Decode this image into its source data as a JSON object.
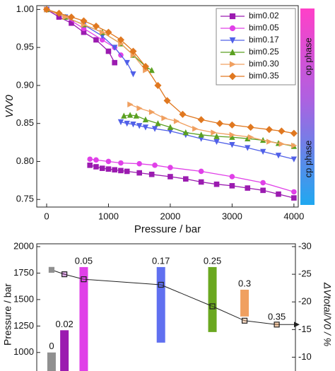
{
  "chart_data": [
    {
      "type": "line",
      "ylabel": "V/V0",
      "xlabel": "Pressure / bar",
      "xlim": [
        -160,
        4070
      ],
      "ylim": [
        0.74,
        1.005
      ],
      "xticks": [
        0,
        1000,
        2000,
        3000,
        4000
      ],
      "yticks": [
        0.75,
        {
          "value": 0.8,
          "label": "0.80"
        },
        0.85,
        {
          "value": 0.9,
          "label": "0.90"
        },
        0.95,
        {
          "value": 1,
          "label": "1.00"
        }
      ],
      "phase_labels": [
        "op phase",
        "cp phase"
      ],
      "series": [
        {
          "name": "bim0.02",
          "color": "#9b1bb0",
          "marker": "square",
          "filled": true,
          "x": [
            0,
            200,
            400,
            600,
            800,
            1000,
            1100,
            null,
            700,
            800,
            900,
            1000,
            1100,
            1200,
            1300,
            1500,
            1700,
            2000,
            2250,
            2500,
            2750,
            3000,
            3250,
            3500,
            3750,
            4000
          ],
          "values": [
            1.0,
            0.99,
            0.982,
            0.97,
            0.96,
            0.945,
            0.93,
            null,
            0.795,
            0.793,
            0.791,
            0.79,
            0.789,
            0.788,
            0.787,
            0.785,
            0.783,
            0.78,
            0.777,
            0.773,
            0.77,
            0.768,
            0.765,
            0.762,
            0.757,
            0.752
          ]
        },
        {
          "name": "bim0.05",
          "color": "#e040e8",
          "marker": "circle",
          "filled": true,
          "x": [
            0,
            300,
            600,
            900,
            1100,
            1200,
            null,
            700,
            800,
            1000,
            1200,
            1500,
            1750,
            2000,
            2500,
            3000,
            3500,
            4000
          ],
          "values": [
            1.0,
            0.99,
            0.975,
            0.96,
            0.95,
            0.94,
            null,
            0.803,
            0.802,
            0.8,
            0.798,
            0.797,
            0.795,
            0.792,
            0.787,
            0.78,
            0.772,
            0.76
          ]
        },
        {
          "name": "bim0.17",
          "color": "#5060e8",
          "marker": "down",
          "filled": true,
          "x": [
            0,
            300,
            600,
            900,
            1100,
            1300,
            1400,
            null,
            1200,
            1300,
            1400,
            1500,
            1600,
            1750,
            2000,
            2250,
            2500,
            2750,
            3000,
            3250,
            3500,
            3750,
            4000
          ],
          "values": [
            1.0,
            0.99,
            0.98,
            0.965,
            0.95,
            0.93,
            0.915,
            null,
            0.852,
            0.85,
            0.849,
            0.847,
            0.845,
            0.843,
            0.84,
            0.835,
            0.83,
            0.826,
            0.822,
            0.818,
            0.813,
            0.808,
            0.803
          ]
        },
        {
          "name": "bim0.25",
          "color": "#5aa020",
          "marker": "up",
          "filled": true,
          "x": [
            0,
            300,
            600,
            900,
            1200,
            1400,
            1600,
            1700,
            null,
            1250,
            1350,
            1450,
            1600,
            1800,
            2000,
            2250,
            2500,
            2750,
            3000,
            3250,
            3500,
            3750,
            4000
          ],
          "values": [
            1.0,
            0.99,
            0.98,
            0.97,
            0.955,
            0.94,
            0.925,
            0.92,
            null,
            0.86,
            0.861,
            0.86,
            0.855,
            0.85,
            0.845,
            0.838,
            0.835,
            0.833,
            0.832,
            0.83,
            0.828,
            0.824,
            0.82
          ]
        },
        {
          "name": "bim0.30",
          "color": "#f0a060",
          "marker": "right",
          "filled": true,
          "x": [
            0,
            300,
            600,
            900,
            1200,
            1400,
            1600,
            null,
            1350,
            1500,
            1700,
            1900,
            2100,
            2400,
            2700,
            3000,
            3300,
            3600,
            3800,
            4000
          ],
          "values": [
            1.0,
            0.99,
            0.98,
            0.97,
            0.955,
            0.94,
            0.92,
            null,
            0.875,
            0.87,
            0.865,
            0.857,
            0.853,
            0.843,
            0.838,
            0.835,
            0.832,
            0.826,
            0.823,
            0.821
          ]
        },
        {
          "name": "bim0.35",
          "color": "#e07820",
          "marker": "diamond",
          "filled": true,
          "x": [
            0,
            200,
            400,
            600,
            800,
            1000,
            1200,
            1400,
            1600,
            1800,
            1950,
            2200,
            2500,
            2800,
            3000,
            3300,
            3600,
            3800,
            4000
          ],
          "values": [
            1.0,
            0.995,
            0.99,
            0.985,
            0.978,
            0.97,
            0.96,
            0.945,
            0.925,
            0.9,
            0.88,
            0.862,
            0.855,
            0.85,
            0.848,
            0.845,
            0.842,
            0.84,
            0.837
          ]
        }
      ]
    },
    {
      "type": "range-bar",
      "ylabel": "Pressure / bar",
      "y2label": "ΔVtotal/V0 / %",
      "xlim": [
        -0.023,
        0.379
      ],
      "ylim": [
        825,
        2000
      ],
      "y2lim": [
        -7.5,
        -30
      ],
      "yticks": [
        1000,
        1250,
        1500,
        1750,
        2000
      ],
      "y2ticks": [
        -30,
        -25,
        -20,
        -15,
        -10
      ],
      "x": [
        0,
        0.02,
        0.05,
        0.17,
        0.25,
        0.3,
        0.35
      ],
      "low": [
        825,
        825,
        825,
        1093,
        1193,
        1340,
        null
      ],
      "high": [
        1000,
        1210,
        1807,
        1807,
        1807,
        1593,
        null
      ],
      "colors": [
        "#909090",
        "#9b1bb0",
        "#e040e8",
        "#6070f0",
        "#6aa820",
        "#f0a060",
        "#e07820"
      ],
      "line": {
        "axis": "y2",
        "color": "#222",
        "values": [
          -25.8,
          -25.0,
          -24.1,
          -23.1,
          -19.2,
          -16.6,
          -15.9
        ]
      }
    }
  ]
}
